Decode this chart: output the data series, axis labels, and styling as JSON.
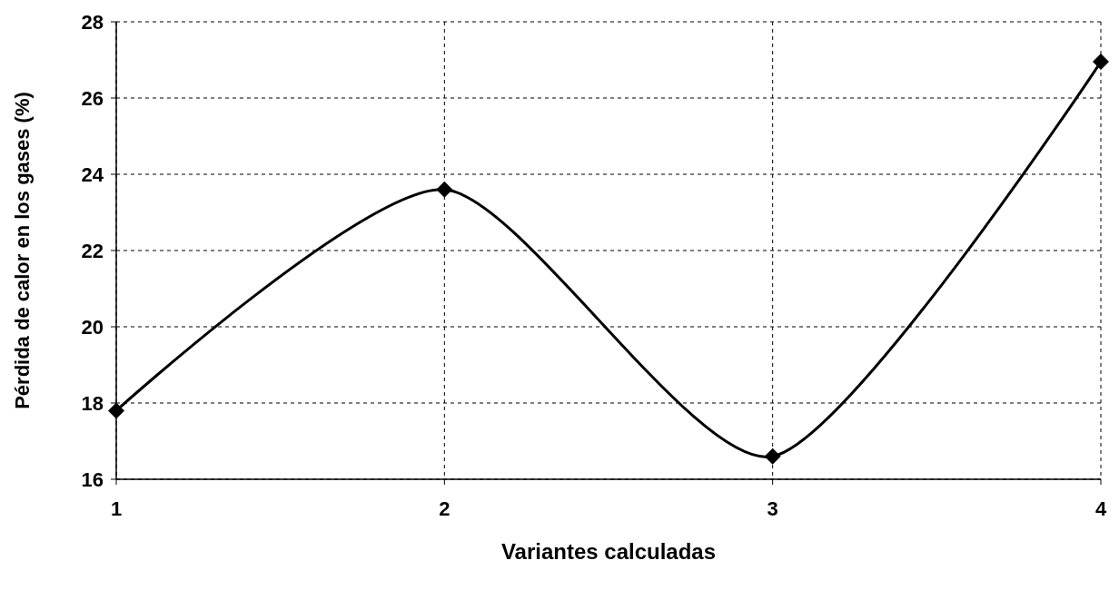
{
  "chart_data": {
    "type": "line",
    "xlabel": "Variantes calculadas",
    "ylabel": "Pérdida de calor en los gases (%)",
    "x": [
      1,
      2,
      3,
      4
    ],
    "xlim": [
      1,
      4
    ],
    "xticks": [
      1,
      2,
      3,
      4
    ],
    "ylim": [
      16,
      28
    ],
    "yticks": [
      16,
      18,
      20,
      22,
      24,
      26,
      28
    ],
    "series": [
      {
        "color": "#000000",
        "values": [
          17.8,
          23.6,
          16.6,
          26.95
        ]
      }
    ],
    "grid": true,
    "marker": "diamond",
    "line_style": "solid"
  }
}
